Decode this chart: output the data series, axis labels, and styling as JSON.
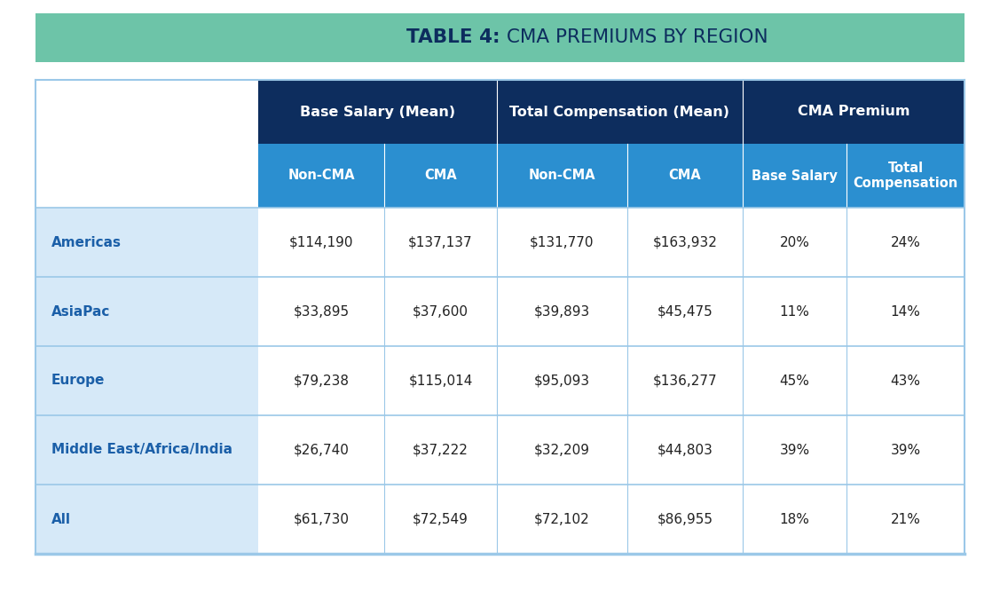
{
  "title_bold": "TABLE 4:",
  "title_regular": " CMA PREMIUMS BY REGION",
  "title_bg_color": "#6DC4A8",
  "header1_bg_color": "#0D2D5E",
  "header2_bg_color": "#2B8FD0",
  "row_bg_color": "#D6E9F8",
  "border_color": "#9BC8E8",
  "header_text_color": "#FFFFFF",
  "row_label_color": "#1B5FA8",
  "data_text_color": "#222222",
  "col_groups": [
    "Base Salary (Mean)",
    "Total Compensation (Mean)",
    "CMA Premium"
  ],
  "col_subheaders": [
    "Non-CMA",
    "CMA",
    "Non-CMA",
    "CMA",
    "Base Salary",
    "Total\nCompensation"
  ],
  "rows": [
    {
      "label": "Americas",
      "values": [
        "$114,190",
        "$137,137",
        "$131,770",
        "$163,932",
        "20%",
        "24%"
      ]
    },
    {
      "label": "AsiaPac",
      "values": [
        "$33,895",
        "$37,600",
        "$39,893",
        "$45,475",
        "11%",
        "14%"
      ]
    },
    {
      "label": "Europe",
      "values": [
        "$79,238",
        "$115,014",
        "$95,093",
        "$136,277",
        "45%",
        "43%"
      ]
    },
    {
      "label": "Middle East/Africa/India",
      "values": [
        "$26,740",
        "$37,222",
        "$32,209",
        "$44,803",
        "39%",
        "39%"
      ]
    },
    {
      "label": "All",
      "values": [
        "$61,730",
        "$72,549",
        "$72,102",
        "$86,955",
        "18%",
        "21%"
      ]
    }
  ],
  "fig_w": 11.27,
  "fig_h": 6.93,
  "dpi": 100
}
